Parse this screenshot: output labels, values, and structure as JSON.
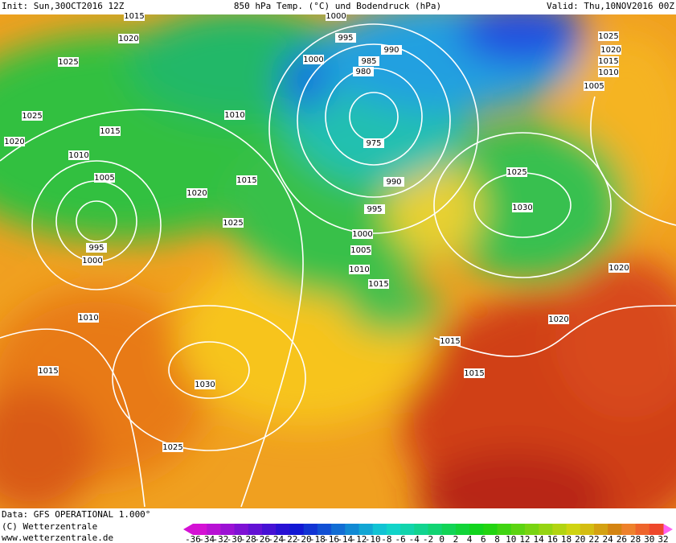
{
  "header": {
    "init": "Init: Sun,30OCT2016 12Z",
    "title": "850 hPa Temp. (°C) und Bodendruck (hPa)",
    "valid": "Valid: Thu,10NOV2016 00Z"
  },
  "isobar_labels": [
    1015,
    1000,
    1020,
    995,
    990,
    1025,
    1025,
    1000,
    985,
    1020,
    980,
    1015,
    1010,
    1005,
    1025,
    1010,
    1015,
    1020,
    975,
    1010,
    1015,
    1025,
    1005,
    990,
    1020,
    995,
    1030,
    1025,
    1000,
    995,
    1005,
    1000,
    1010,
    1020,
    1015,
    1010,
    1020,
    1015,
    1015,
    1015,
    1030,
    1025
  ],
  "footer": {
    "data": "Data: GFS OPERATIONAL 1.000°",
    "copyright": "(C) Wetterzentrale",
    "url": "www.wetterzentrale.de"
  },
  "colorbar": {
    "ticks": [
      -36,
      -34,
      -32,
      -30,
      -28,
      -26,
      -24,
      -22,
      -20,
      -18,
      -16,
      -14,
      -12,
      -10,
      -8,
      -6,
      -4,
      -2,
      0,
      2,
      4,
      6,
      8,
      10,
      12,
      14,
      16,
      18,
      20,
      22,
      24,
      26,
      28,
      30,
      32
    ]
  }
}
